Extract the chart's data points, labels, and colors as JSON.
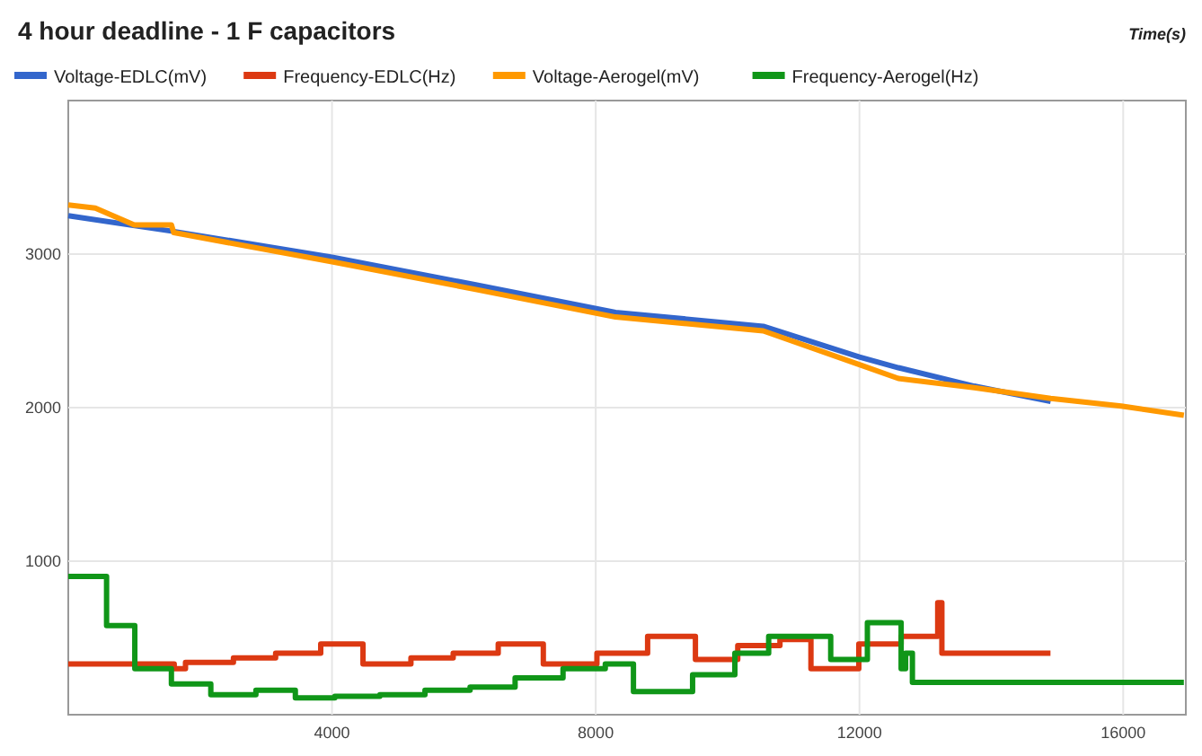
{
  "chart_data": {
    "type": "line",
    "title": "4 hour deadline - 1 F capacitors",
    "xlabel": "Time(s)",
    "xlim": [
      0,
      16950
    ],
    "xticks": [
      4000,
      8000,
      12000,
      16000
    ],
    "ylim": [
      0,
      4000
    ],
    "yticks": [
      1000,
      2000,
      3000
    ],
    "grid": true,
    "legend": "top",
    "series": [
      {
        "name": "Voltage-EDLC(mV)",
        "color": "#3366cc",
        "x": [
          0,
          1564,
          4000,
          6180,
          8300,
          10540,
          12000,
          12590,
          13740,
          14900
        ],
        "values": [
          3250,
          3150,
          2980,
          2800,
          2620,
          2530,
          2330,
          2260,
          2140,
          2040
        ]
      },
      {
        "name": "Frequency-EDLC(Hz)",
        "color": "#dc3912",
        "type": "step",
        "x": [
          0,
          1607,
          1778,
          2505,
          3145,
          3829,
          4470,
          5197,
          5838,
          6521,
          7205,
          8018,
          8787,
          9512,
          10154,
          10794,
          11264,
          11990,
          12632,
          13187,
          13250,
          14897
        ],
        "values": [
          330,
          300,
          340,
          370,
          400,
          460,
          330,
          370,
          400,
          460,
          330,
          400,
          510,
          360,
          450,
          490,
          300,
          460,
          510,
          730,
          400,
          400
        ]
      },
      {
        "name": "Voltage-Aerogel(mV)",
        "color": "#ff9900",
        "x": [
          0,
          410,
          1000,
          1564,
          1600,
          4000,
          6180,
          8300,
          10540,
          12000,
          12590,
          13740,
          14900,
          15970,
          16920
        ],
        "values": [
          3320,
          3300,
          3190,
          3190,
          3140,
          2950,
          2770,
          2590,
          2500,
          2280,
          2190,
          2130,
          2060,
          2010,
          1950
        ]
      },
      {
        "name": "Frequency-Aerogel(Hz)",
        "color": "#109618",
        "type": "step",
        "x": [
          0,
          581,
          1009,
          1564,
          2162,
          2846,
          3444,
          4043,
          4726,
          5410,
          6094,
          6777,
          7504,
          8145,
          8572,
          9469,
          10110,
          10623,
          11564,
          12120,
          12632,
          12700,
          12803,
          16920
        ],
        "values": [
          900,
          580,
          300,
          200,
          130,
          160,
          110,
          120,
          130,
          160,
          180,
          240,
          300,
          330,
          150,
          260,
          400,
          510,
          360,
          600,
          300,
          400,
          210,
          210
        ]
      }
    ]
  }
}
